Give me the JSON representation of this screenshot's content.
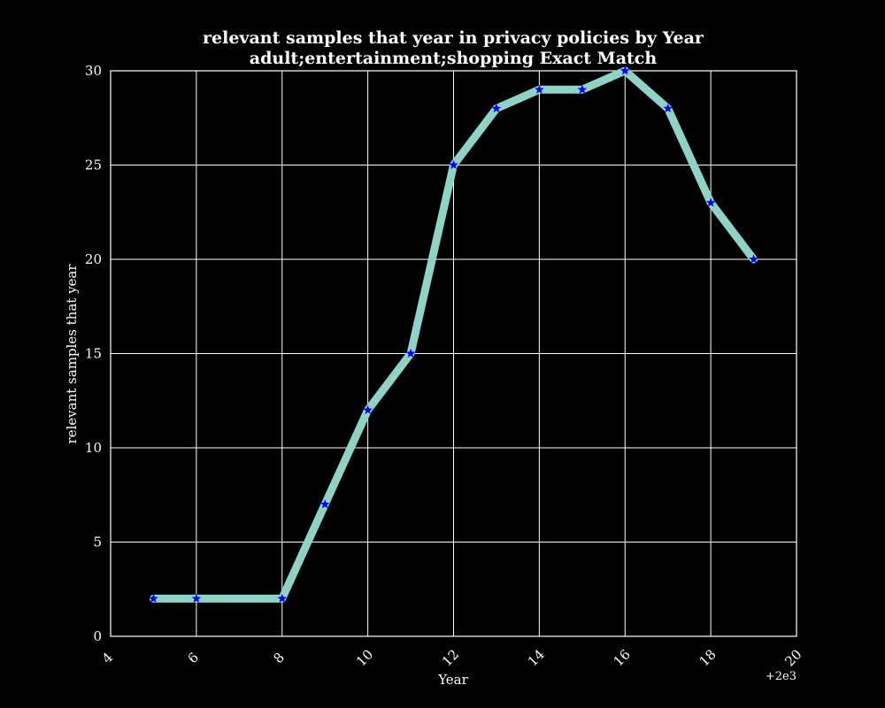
{
  "chart_data": {
    "type": "line",
    "title_line1": "relevant samples that year in privacy policies by Year",
    "title_line2": "adult;entertainment;shopping Exact Match",
    "xlabel": "Year",
    "ylabel": "relevant samples that year",
    "x_offset_label": "+2e3",
    "xlim": [
      4,
      20
    ],
    "ylim": [
      0,
      30
    ],
    "x_ticks": [
      "4",
      "6",
      "8",
      "10",
      "12",
      "14",
      "16",
      "18",
      "20"
    ],
    "y_ticks": [
      "0",
      "5",
      "10",
      "15",
      "20",
      "25",
      "30"
    ],
    "grid": true,
    "background_color": "#000000",
    "grid_color": "#ffffff",
    "line_color": "#8dd3c7",
    "marker_color": "#0000ff",
    "marker": "star",
    "series": [
      {
        "x": [
          5,
          6,
          8,
          9,
          10,
          11,
          12,
          13,
          14,
          15,
          16,
          17,
          18,
          19
        ],
        "y": [
          2,
          2,
          2,
          7,
          12,
          15,
          25,
          28,
          29,
          29,
          30,
          28,
          23,
          20
        ]
      }
    ]
  }
}
